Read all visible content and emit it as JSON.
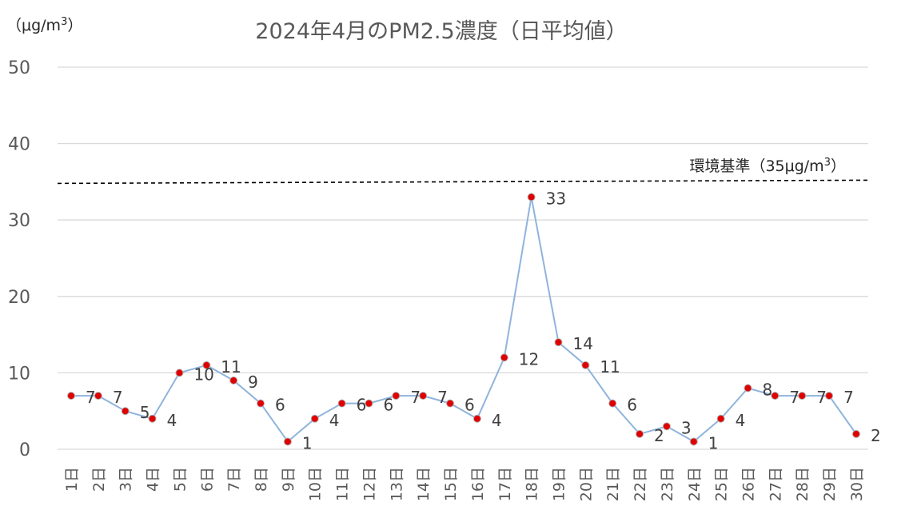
{
  "chart_data": {
    "type": "line",
    "title": "2024年4月のPM2.5濃度（日平均値）",
    "unit_label": "（μg/m3）",
    "ylim": [
      0,
      50
    ],
    "yticks": [
      0,
      10,
      20,
      30,
      40,
      50
    ],
    "grid": true,
    "categories": [
      "1日",
      "2日",
      "3日",
      "4日",
      "5日",
      "6日",
      "7日",
      "8日",
      "9日",
      "10日",
      "11日",
      "12日",
      "13日",
      "14日",
      "15日",
      "16日",
      "17日",
      "18日",
      "19日",
      "20日",
      "21日",
      "22日",
      "23日",
      "24日",
      "25日",
      "26日",
      "27日",
      "28日",
      "29日",
      "30日"
    ],
    "series": [
      {
        "values": [
          7,
          7,
          5,
          4,
          10,
          11,
          9,
          6,
          1,
          4,
          6,
          6,
          7,
          7,
          6,
          4,
          12,
          33,
          14,
          11,
          6,
          2,
          3,
          1,
          4,
          8,
          7,
          7,
          7,
          2
        ]
      }
    ],
    "reference_line": {
      "value": 35,
      "label": "環境基準（35μg/m3）",
      "style": "dashed"
    },
    "colors": {
      "line": "#8fb4dc",
      "marker": "#e00000",
      "marker_edge": "#b0b0b0",
      "grid": "#d9d9d9",
      "reference": "#000000"
    }
  }
}
